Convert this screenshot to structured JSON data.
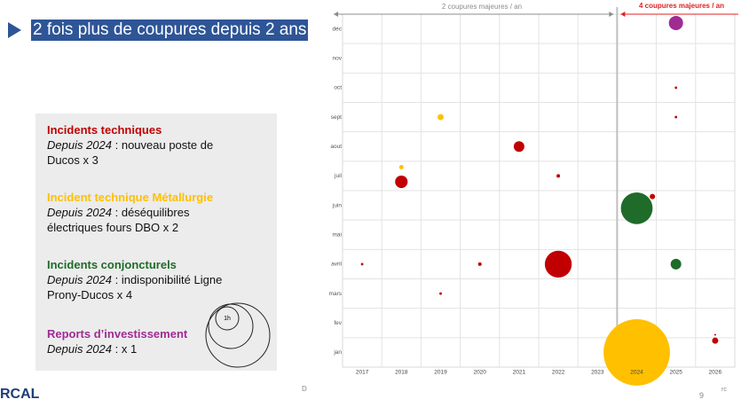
{
  "slide_title": "2 fois plus de coupures depuis 2 ans",
  "legend_notes": [
    {
      "since": "Depuis 2024",
      "detail": " : nouveau poste de Ducos x 3"
    },
    {
      "since": "Depuis 2024",
      "detail": " : déséquilibres électriques fours DBO x 2"
    },
    {
      "since": "Depuis 2024",
      "detail": " : indisponibilité Ligne Prony-Ducos x 4"
    },
    {
      "since": "Depuis 2024",
      "detail": " : x 1"
    }
  ],
  "footer": {
    "logo": "RCAL",
    "left": "D",
    "page": "9",
    "right": "rc"
  },
  "chart_data": {
    "type": "bubble",
    "xlim": [
      2016.5,
      2026.5
    ],
    "xticks": [
      2017,
      2018,
      2019,
      2020,
      2021,
      2022,
      2023,
      2024,
      2025,
      2026
    ],
    "ylim": [
      0.5,
      12.5
    ],
    "yticks": [
      {
        "value": 1,
        "label": "jan"
      },
      {
        "value": 2,
        "label": "fev"
      },
      {
        "value": 3,
        "label": "mars"
      },
      {
        "value": 4,
        "label": "avril"
      },
      {
        "value": 5,
        "label": "mai"
      },
      {
        "value": 6,
        "label": "juin"
      },
      {
        "value": 7,
        "label": "juil"
      },
      {
        "value": 8,
        "label": "aout"
      },
      {
        "value": 9,
        "label": "sept"
      },
      {
        "value": 10,
        "label": "oct"
      },
      {
        "value": 11,
        "label": "nov"
      },
      {
        "value": 12,
        "label": "déc"
      }
    ],
    "grid": true,
    "size_legend": {
      "value": 1,
      "label": "1h"
    },
    "annotations": [
      {
        "text": "2 coupures majeures / an",
        "color": "#8c8c8c"
      },
      {
        "text": "4 coupures majeures / an",
        "color": "#e02020"
      }
    ],
    "series": [
      {
        "name": "Incidents techniques",
        "color": "#c00000",
        "x": [
          2017,
          2018,
          2019,
          2020,
          2021,
          2022,
          2022,
          2024.4,
          2025,
          2025,
          2026,
          2026
        ],
        "values": [
          4,
          6.8,
          3,
          4,
          8,
          7,
          4,
          6.3,
          10,
          9,
          1.4,
          1.6
        ],
        "sizes": [
          0.02,
          0.5,
          0.02,
          0.04,
          0.36,
          0.04,
          2.3,
          0.09,
          0.02,
          0.02,
          0.12,
          0.01
        ]
      },
      {
        "name": "Incident technique Métallurgie",
        "color": "#ffc000",
        "x": [
          2018,
          2019,
          2024
        ],
        "values": [
          7.3,
          9,
          1
        ],
        "sizes": [
          0.06,
          0.12,
          14
        ]
      },
      {
        "name": "Incidents conjoncturels",
        "color": "#1e6b2a",
        "x": [
          2024,
          2025
        ],
        "values": [
          5.9,
          4
        ],
        "sizes": [
          3.2,
          0.36
        ]
      },
      {
        "name": "Reports d’investissement",
        "color": "#a02b93",
        "x": [
          2025
        ],
        "values": [
          12.2
        ],
        "sizes": [
          0.64
        ]
      }
    ]
  }
}
